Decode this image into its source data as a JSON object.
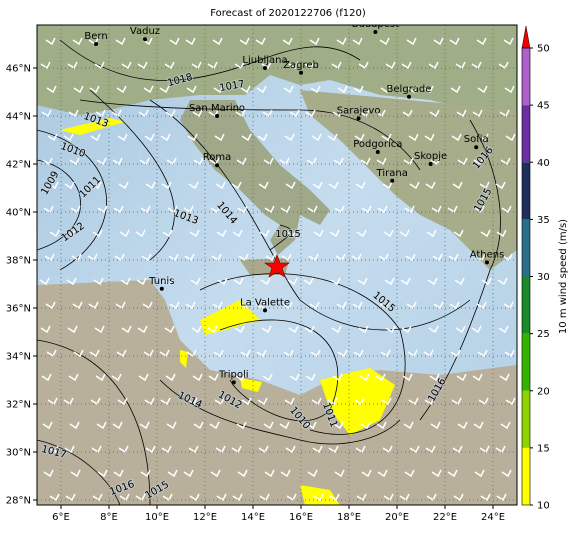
{
  "map": {
    "title": "Forecast of 2020122706 (f120)",
    "xticks": [
      {
        "value": 6,
        "label": "6°E"
      },
      {
        "value": 8,
        "label": "8°E"
      },
      {
        "value": 10,
        "label": "10°E"
      },
      {
        "value": 12,
        "label": "12°E"
      },
      {
        "value": 14,
        "label": "14°E"
      },
      {
        "value": 16,
        "label": "16°E"
      },
      {
        "value": 18,
        "label": "18°E"
      },
      {
        "value": 20,
        "label": "20°E"
      },
      {
        "value": 22,
        "label": "22°E"
      },
      {
        "value": 24,
        "label": "24°E"
      }
    ],
    "yticks": [
      {
        "value": 28,
        "label": "28°N"
      },
      {
        "value": 30,
        "label": "30°N"
      },
      {
        "value": 32,
        "label": "32°N"
      },
      {
        "value": 34,
        "label": "34°N"
      },
      {
        "value": 36,
        "label": "36°N"
      },
      {
        "value": 38,
        "label": "38°N"
      },
      {
        "value": 40,
        "label": "40°N"
      },
      {
        "value": 42,
        "label": "42°N"
      },
      {
        "value": 44,
        "label": "44°N"
      },
      {
        "value": 46,
        "label": "46°N"
      }
    ],
    "cities": [
      {
        "name": "Bern",
        "lon": 7.46,
        "lat": 47.0
      },
      {
        "name": "Vaduz",
        "lon": 9.5,
        "lat": 47.2
      },
      {
        "name": "Budapest",
        "lon": 19.1,
        "lat": 47.5
      },
      {
        "name": "Ljubljana",
        "lon": 14.5,
        "lat": 46.0
      },
      {
        "name": "Zagreb",
        "lon": 16.0,
        "lat": 45.8
      },
      {
        "name": "San Marino",
        "lon": 12.5,
        "lat": 44.0
      },
      {
        "name": "Belgrade",
        "lon": 20.5,
        "lat": 44.8
      },
      {
        "name": "Sarajevo",
        "lon": 18.4,
        "lat": 43.9
      },
      {
        "name": "Roma",
        "lon": 12.5,
        "lat": 41.95
      },
      {
        "name": "Podgorica",
        "lon": 19.2,
        "lat": 42.5
      },
      {
        "name": "Skopje",
        "lon": 21.4,
        "lat": 42.0
      },
      {
        "name": "Sofia",
        "lon": 23.3,
        "lat": 42.7
      },
      {
        "name": "Tirana",
        "lon": 19.8,
        "lat": 41.3
      },
      {
        "name": "Tunis",
        "lon": 10.2,
        "lat": 36.8
      },
      {
        "name": "La Valette",
        "lon": 14.5,
        "lat": 35.9
      },
      {
        "name": "Tripoli",
        "lon": 13.2,
        "lat": 32.9
      },
      {
        "name": "Athens",
        "lon": 23.75,
        "lat": 37.9
      }
    ],
    "isobar_labels": [
      "1018",
      "1017",
      "1013",
      "1010",
      "1009",
      "1011",
      "1012",
      "1013",
      "1014",
      "1015",
      "1015",
      "1016",
      "1015",
      "1016",
      "1011",
      "1010",
      "1012",
      "1014",
      "1017",
      "1016",
      "1015"
    ],
    "colorbar": {
      "label": "10 m wind speed (m/s)",
      "ticks": [
        10,
        15,
        20,
        25,
        30,
        35,
        40,
        45,
        50
      ]
    }
  }
}
